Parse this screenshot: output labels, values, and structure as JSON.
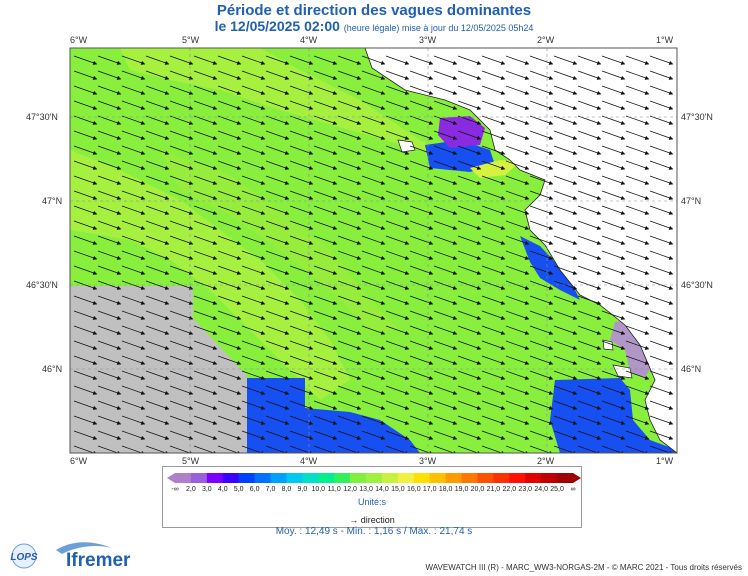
{
  "title": "Période et direction des vagues dominantes",
  "subtitle_date": "le 12/05/2025 02:00",
  "subtitle_note": "(heure légale) mise à jour du 12/05/2025 05h24",
  "lon_labels": [
    "6°W",
    "5°W",
    "4°W",
    "3°W",
    "2°W",
    "1°W"
  ],
  "lat_labels": [
    "47°30'N",
    "47°N",
    "46°30'N",
    "46°N"
  ],
  "legend": {
    "ticks": [
      "-∞",
      "2,0",
      "3,0",
      "4,0",
      "5,0",
      "6,0",
      "7,0",
      "8,0",
      "9,0",
      "10,0",
      "11,0",
      "12,0",
      "13,0",
      "14,0",
      "15,0",
      "16,0",
      "17,0",
      "18,0",
      "19,0",
      "20,0",
      "21,0",
      "22,0",
      "23,0",
      "24,0",
      "25,0",
      "∞"
    ],
    "colors": [
      "#b07fc9",
      "#9a60d8",
      "#7a00ff",
      "#3b00ff",
      "#0040ff",
      "#0070ff",
      "#00a0ff",
      "#00c8f0",
      "#00e0c8",
      "#00f090",
      "#30f060",
      "#80f040",
      "#a0f040",
      "#c8f040",
      "#f0f040",
      "#ffe000",
      "#ffc000",
      "#ff9a00",
      "#ff7800",
      "#ff5000",
      "#ff3000",
      "#ff1000",
      "#e00000",
      "#c00000",
      "#a00000"
    ],
    "unit": "Unité:s",
    "direction": "direction"
  },
  "stats": "Moy. : 12,49 s   -   Min. : 1,16 s / Max. : 21,74 s",
  "credit": "WAVEWATCH III (R) - MARC_WW3-NORGAS-2M - © MARC 2021 - Tous droits réservés",
  "logos": {
    "lops": "LOPS",
    "ifremer": "Ifremer"
  },
  "map_colors": {
    "land": "#ffffff",
    "nodata": "#c0c0c0",
    "green": "#88ef3c",
    "green_light": "#b0f040",
    "blue": "#1650f0",
    "purple": "#8a2be2",
    "lavender": "#b097c7"
  }
}
